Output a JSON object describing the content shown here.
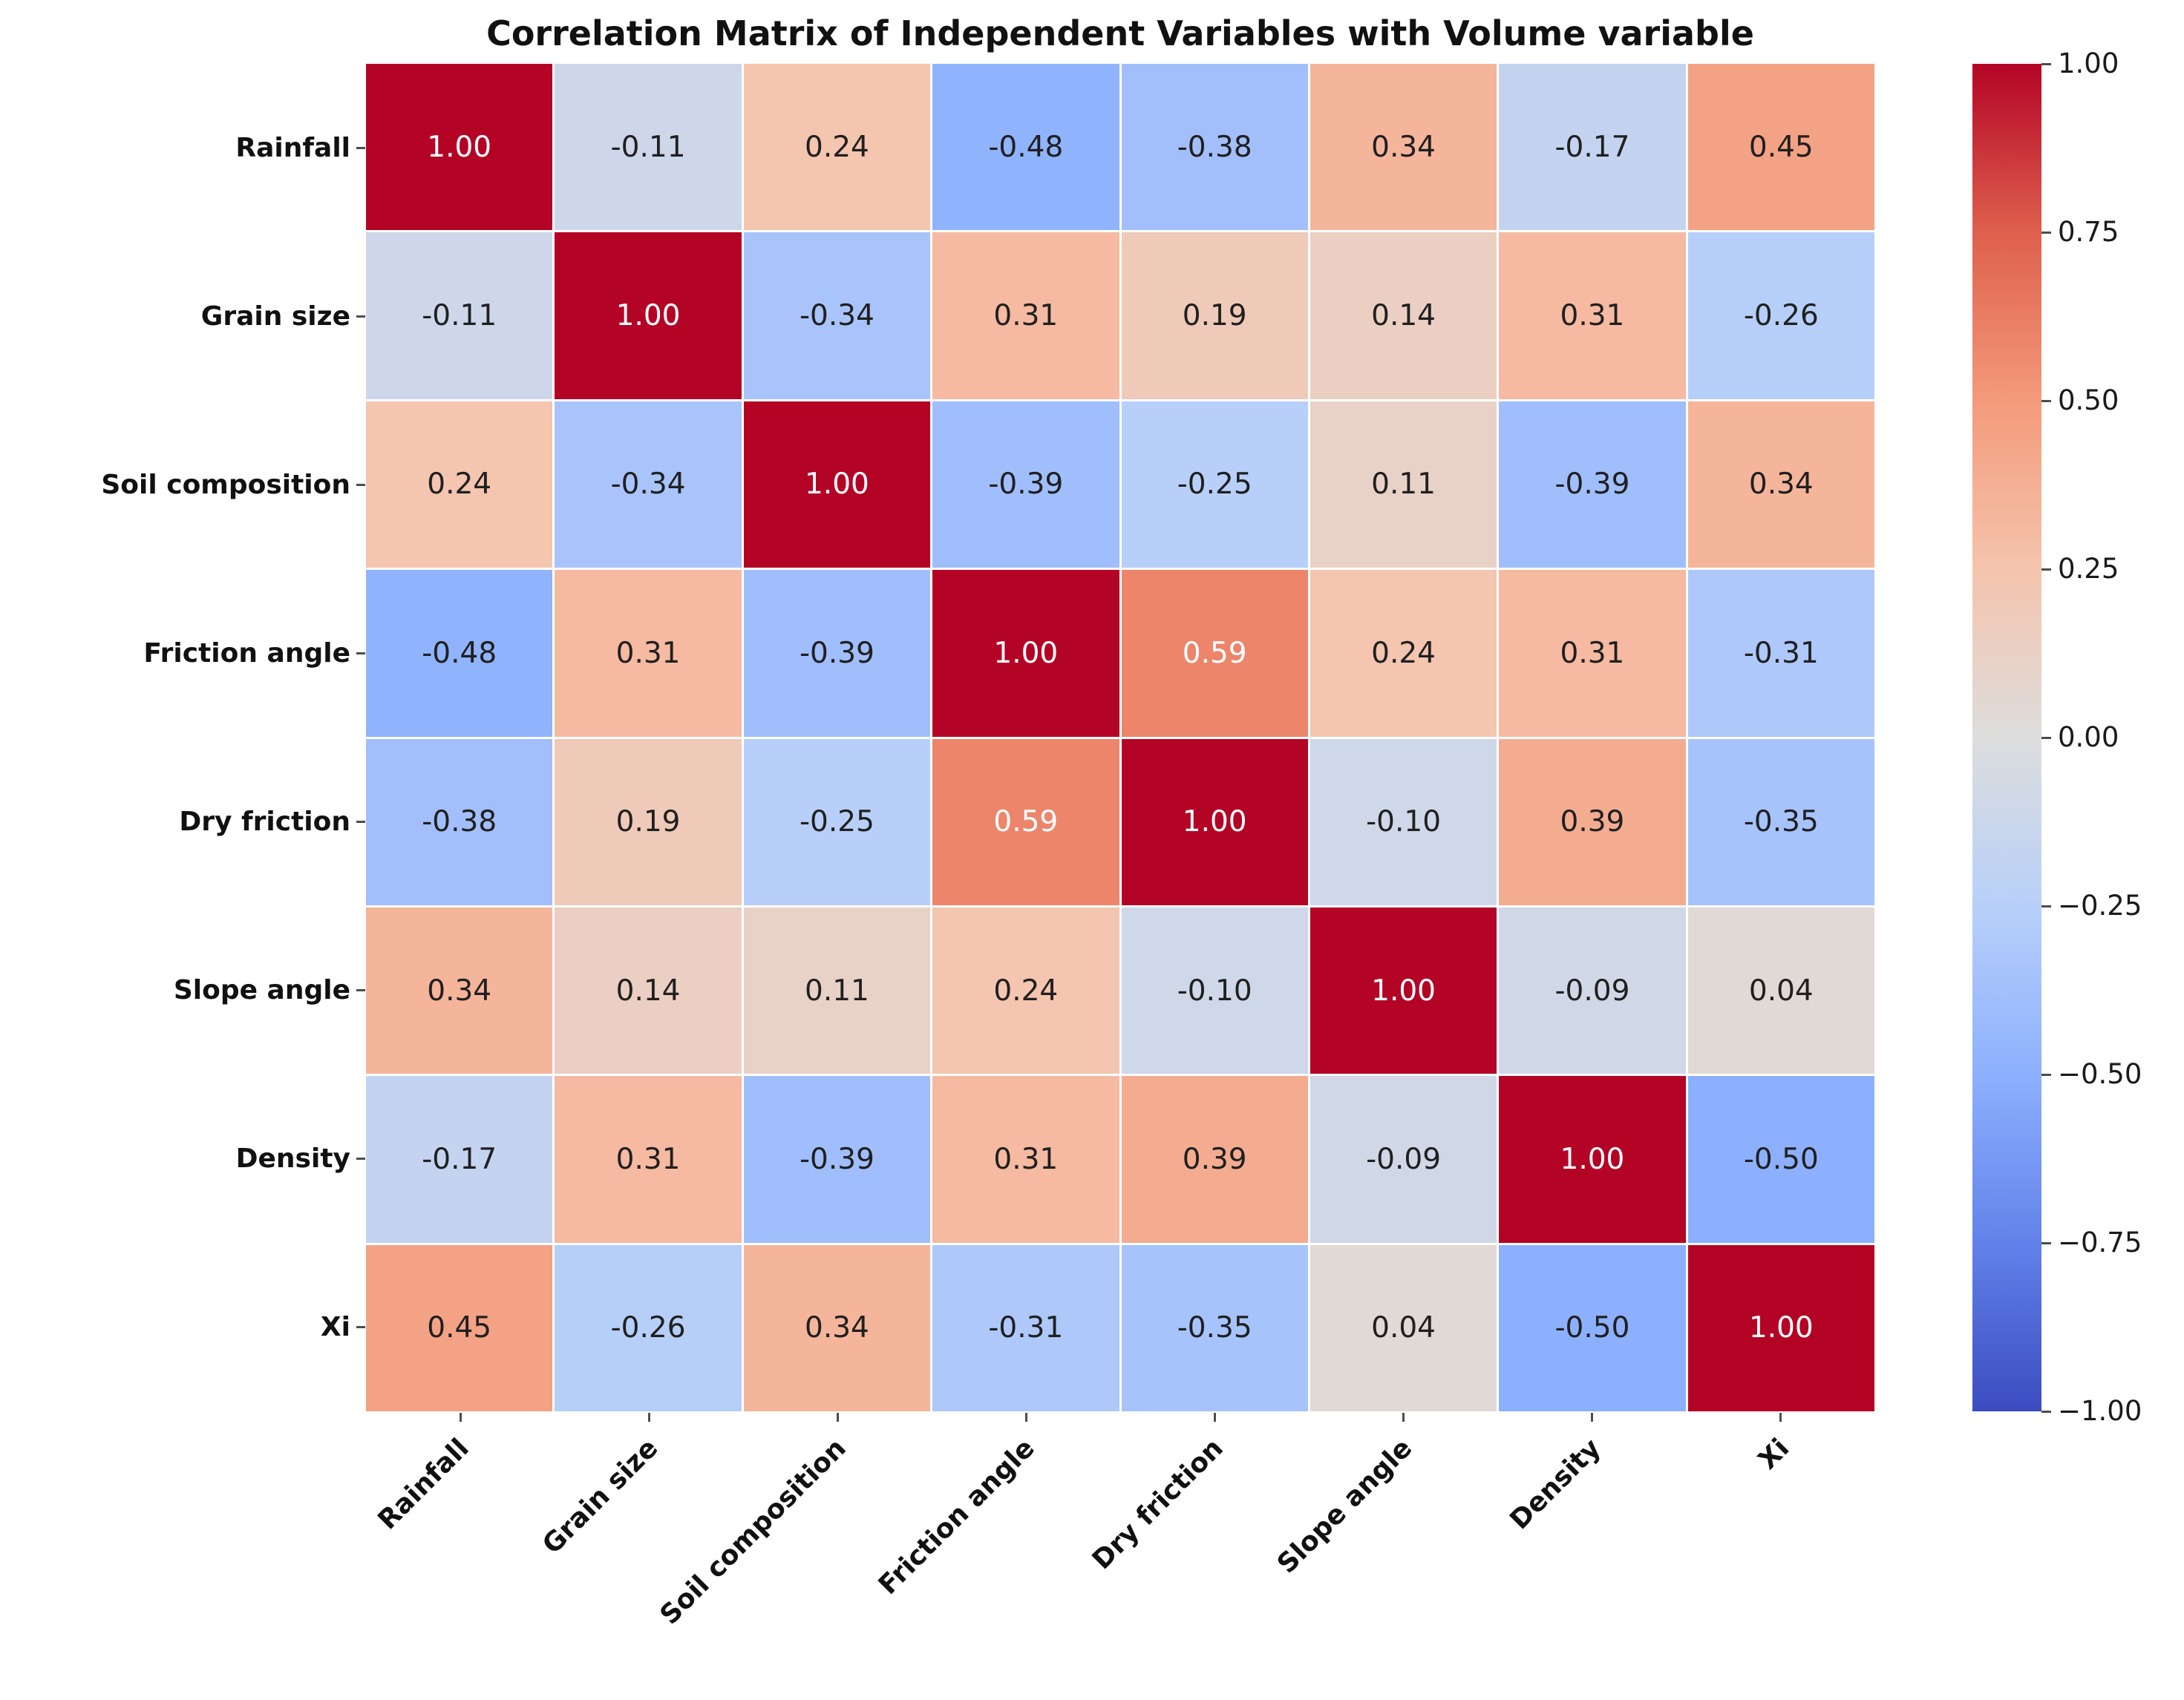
{
  "chart_data": {
    "type": "heatmap",
    "title": "Correlation Matrix of Independent Variables with Volume variable",
    "variables": [
      "Rainfall",
      "Grain size",
      "Soil composition",
      "Friction angle",
      "Dry friction",
      "Slope angle",
      "Density",
      "Xi"
    ],
    "x_tick_labels": [
      "Rainfall",
      "Grain size",
      "Soil composition",
      "Friction angle",
      "Dry friction",
      "Slope angle",
      "Density",
      "Xi"
    ],
    "y_tick_labels": [
      "Rainfall",
      "Grain size",
      "Soil composition",
      "Friction angle",
      "Dry friction",
      "Slope angle",
      "Density",
      "Xi"
    ],
    "matrix": [
      [
        1.0,
        -0.11,
        0.24,
        -0.48,
        -0.38,
        0.34,
        -0.17,
        0.45
      ],
      [
        -0.11,
        1.0,
        -0.34,
        0.31,
        0.19,
        0.14,
        0.31,
        -0.26
      ],
      [
        0.24,
        -0.34,
        1.0,
        -0.39,
        -0.25,
        0.11,
        -0.39,
        0.34
      ],
      [
        -0.48,
        0.31,
        -0.39,
        1.0,
        0.59,
        0.24,
        0.31,
        -0.31
      ],
      [
        -0.38,
        0.19,
        -0.25,
        0.59,
        1.0,
        -0.1,
        0.39,
        -0.35
      ],
      [
        0.34,
        0.14,
        0.11,
        0.24,
        -0.1,
        1.0,
        -0.09,
        0.04
      ],
      [
        -0.17,
        0.31,
        -0.39,
        0.31,
        0.39,
        -0.09,
        1.0,
        -0.5
      ],
      [
        0.45,
        -0.26,
        0.34,
        -0.31,
        -0.35,
        0.04,
        -0.5,
        1.0
      ]
    ],
    "value_range": [
      -1,
      1
    ],
    "annotation_decimals": 2,
    "grid_line_color": "#ffffff",
    "colormap": {
      "name": "coolwarm",
      "anchors": [
        {
          "v": -1.0,
          "color": "#3b4cc0"
        },
        {
          "v": -0.75,
          "color": "#6282ea"
        },
        {
          "v": -0.5,
          "color": "#8db0fe"
        },
        {
          "v": -0.25,
          "color": "#b8d0f9"
        },
        {
          "v": 0.0,
          "color": "#dddddd"
        },
        {
          "v": 0.25,
          "color": "#f5c4ad"
        },
        {
          "v": 0.5,
          "color": "#f49a7b"
        },
        {
          "v": 0.75,
          "color": "#de604d"
        },
        {
          "v": 1.0,
          "color": "#b40426"
        }
      ]
    },
    "colorbar": {
      "tick_labels": [
        "1.00",
        "0.75",
        "0.50",
        "0.25",
        "0.00",
        "−0.25",
        "−0.50",
        "−0.75",
        "−1.00"
      ],
      "tick_values": [
        1,
        0.75,
        0.5,
        0.25,
        0,
        -0.25,
        -0.5,
        -0.75,
        -1
      ]
    },
    "colors": {
      "annotation_dark": "#202020",
      "annotation_light": "#ffffff",
      "title": "#111111",
      "background": "#ffffff"
    }
  }
}
